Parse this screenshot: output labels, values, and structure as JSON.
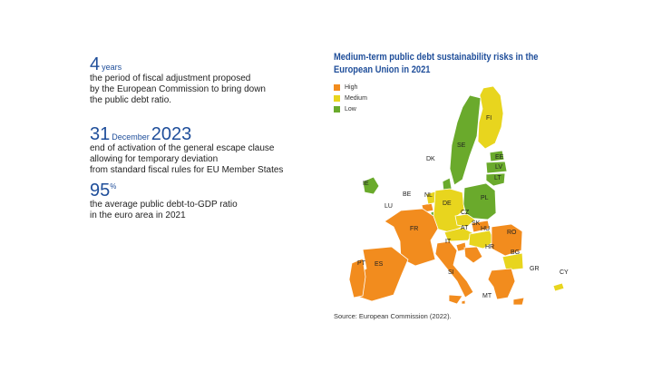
{
  "stats": [
    {
      "big": "4",
      "small": "years",
      "small2": "",
      "desc": "the period of fiscal adjustment proposed\nby the European Commission to bring down\nthe public debt ratio."
    },
    {
      "big": "31",
      "small": "December",
      "small2": "2023",
      "desc": "end of activation of the general escape clause\nallowing for temporary deviation\nfrom standard fiscal rules for EU Member States"
    },
    {
      "big": "95",
      "small": "%",
      "small2": "",
      "desc": "the average public debt-to-GDP ratio\nin the euro area in 2021"
    }
  ],
  "map": {
    "title": "Medium-term public debt sustainability risks in the European Union in 2021",
    "legend": [
      {
        "label": "High",
        "color": "#f28c1e"
      },
      {
        "label": "Medium",
        "color": "#e8d51e"
      },
      {
        "label": "Low",
        "color": "#6aaa2c"
      }
    ],
    "countries": {
      "FI": "Medium",
      "SE": "Low",
      "EE": "Low",
      "LV": "Low",
      "LT": "Low",
      "DK": "Low",
      "IE": "Low",
      "PL": "Low",
      "NL": "Medium",
      "DE": "Medium",
      "LU": "Low",
      "CZ": "Medium",
      "AT": "Medium",
      "SK": "High",
      "HU": "Medium",
      "RO": "High",
      "BG": "Medium",
      "FR": "High",
      "BE": "High",
      "IT": "High",
      "SI": "High",
      "HR": "High",
      "ES": "High",
      "PT": "High",
      "GR": "High",
      "CY": "Medium",
      "MT": "High"
    },
    "labels": [
      "FI",
      "SE",
      "EE",
      "LV",
      "LT",
      "DK",
      "IE",
      "BE",
      "NL",
      "LU",
      "DE",
      "PL",
      "CZ",
      "SK",
      "AT",
      "HU",
      "RO",
      "FR",
      "IT",
      "SI",
      "HR",
      "BG",
      "ES",
      "PT",
      "GR",
      "CY",
      "MT"
    ]
  },
  "source": "Source: European Commission (2022)."
}
